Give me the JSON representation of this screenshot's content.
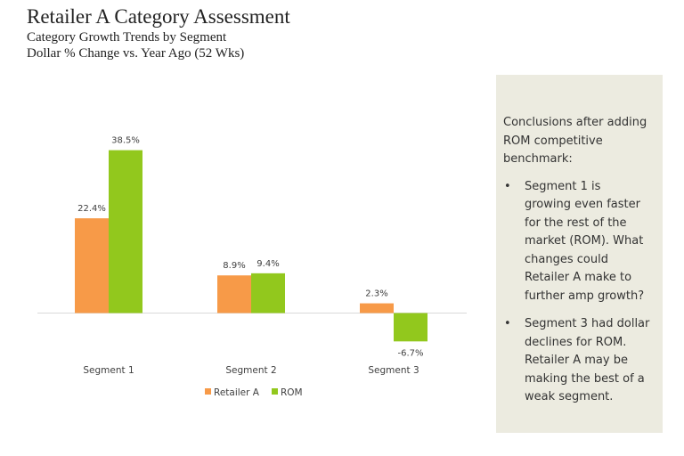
{
  "header": {
    "title": "Retailer A Category Assessment",
    "subtitle_line1": "Category Growth Trends by Segment",
    "subtitle_line2": "Dollar % Change vs. Year Ago (52 Wks)"
  },
  "chart_data": {
    "type": "bar",
    "categories": [
      "Segment 1",
      "Segment 2",
      "Segment 3"
    ],
    "series": [
      {
        "name": "Retailer A",
        "values": [
          22.4,
          8.9,
          2.3
        ],
        "labels": [
          "22.4%",
          "8.9%",
          "2.3%"
        ],
        "color": "#f79a48"
      },
      {
        "name": "ROM",
        "values": [
          38.5,
          9.4,
          -6.7
        ],
        "labels": [
          "38.5%",
          "9.4%",
          "-6.7%"
        ],
        "color": "#92c81d"
      }
    ],
    "grid": false,
    "legend": "bottom"
  },
  "conclusions": {
    "intro": "Conclusions after adding ROM competitive benchmark:",
    "bullet_symbol": "•",
    "items": [
      "Segment 1 is growing even faster for the rest of the market (ROM). What changes could Retailer A make to further amp growth?",
      "Segment 3 had dollar declines for ROM. Retailer A  may be making the best of a weak segment."
    ]
  }
}
